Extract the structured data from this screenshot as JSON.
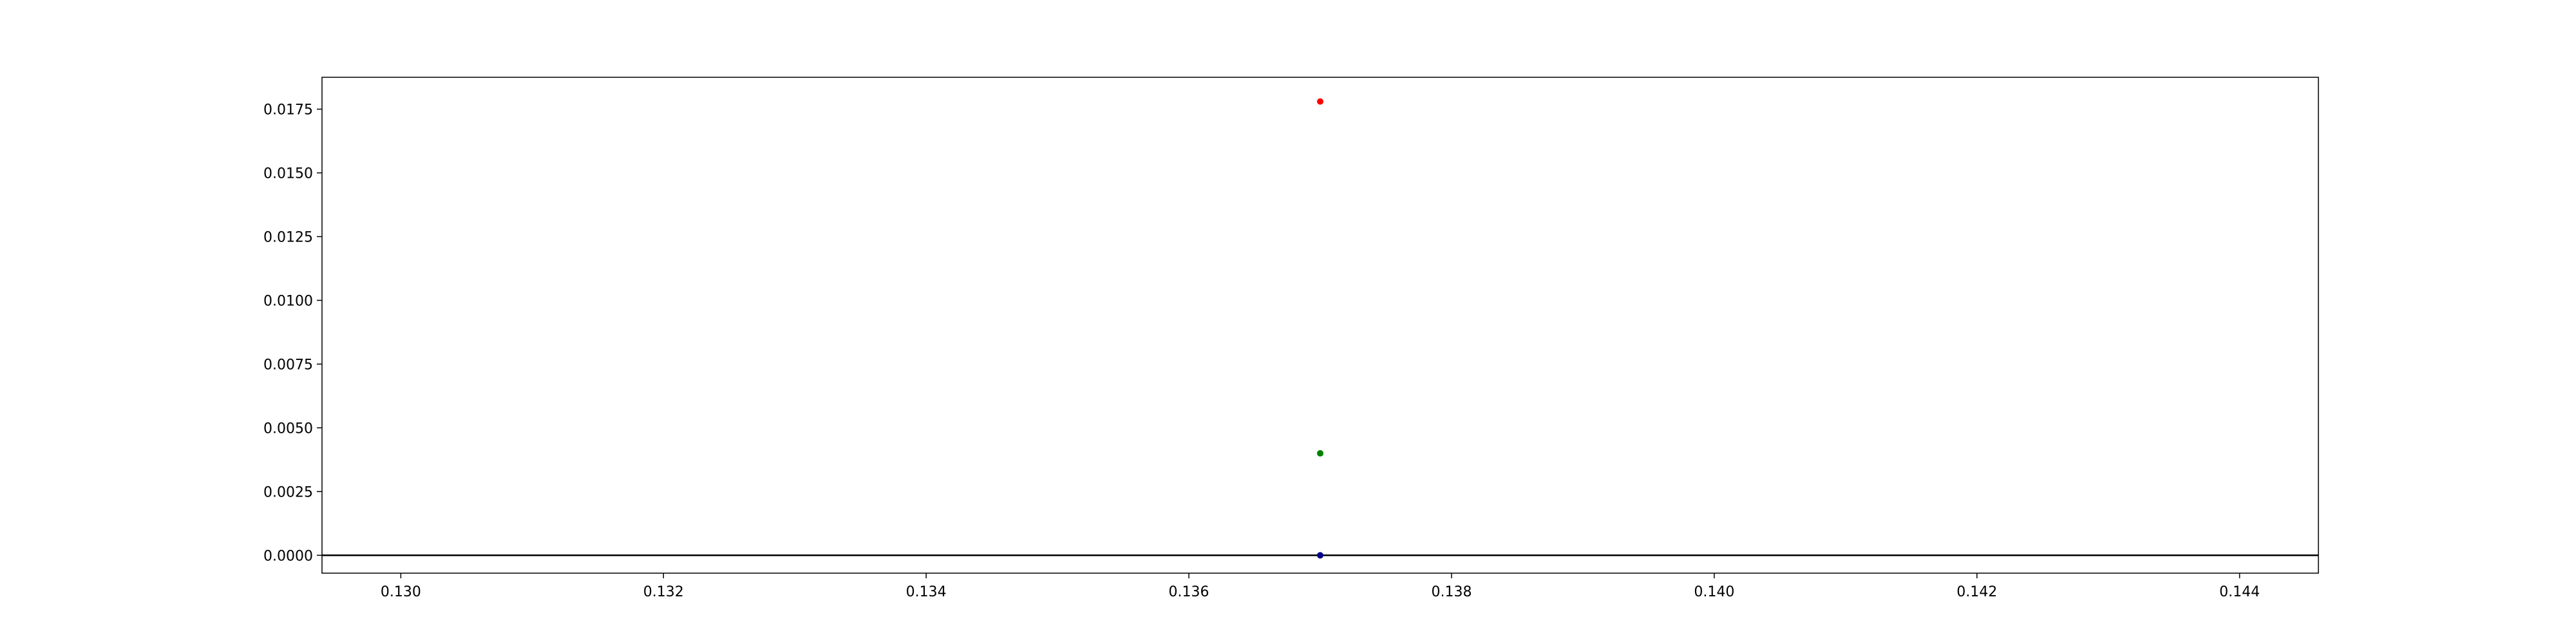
{
  "chart_data": {
    "type": "scatter",
    "xlim": [
      0.1294,
      0.1446
    ],
    "ylim": [
      -0.0007,
      0.01875
    ],
    "x_ticks": [
      "0.130",
      "0.132",
      "0.134",
      "0.136",
      "0.138",
      "0.140",
      "0.142",
      "0.144"
    ],
    "y_ticks": [
      "0.0000",
      "0.0025",
      "0.0050",
      "0.0075",
      "0.0100",
      "0.0125",
      "0.0150",
      "0.0175"
    ],
    "hline_y": 0,
    "grid": false,
    "series": [
      {
        "color": "#ff0000",
        "points": [
          [
            0.137,
            0.0178
          ]
        ]
      },
      {
        "color": "#008000",
        "points": [
          [
            0.137,
            0.004
          ]
        ]
      },
      {
        "color": "#00008b",
        "points": [
          [
            0.137,
            0.0
          ]
        ]
      }
    ]
  }
}
